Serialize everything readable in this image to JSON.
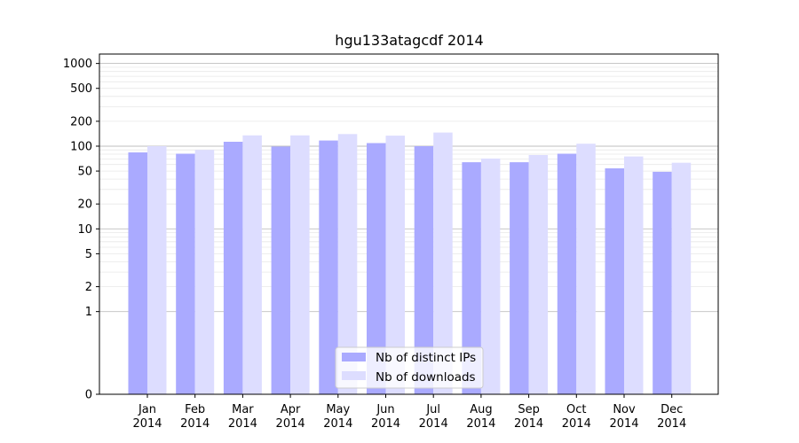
{
  "chart_data": {
    "type": "bar",
    "title": "hgu133atagcdf 2014",
    "xlabel": "",
    "ylabel": "",
    "scale": "symlog",
    "ylim": [
      0,
      1300
    ],
    "yticks": [
      0,
      1,
      2,
      5,
      10,
      20,
      50,
      100,
      200,
      500,
      1000
    ],
    "ytick_labels": [
      "0",
      "1",
      "2",
      "5",
      "10",
      "20",
      "50",
      "100",
      "200",
      "500",
      "1000"
    ],
    "grid": true,
    "legend_position": "bottom-center",
    "categories": [
      {
        "month": "Jan",
        "year": "2014"
      },
      {
        "month": "Feb",
        "year": "2014"
      },
      {
        "month": "Mar",
        "year": "2014"
      },
      {
        "month": "Apr",
        "year": "2014"
      },
      {
        "month": "May",
        "year": "2014"
      },
      {
        "month": "Jun",
        "year": "2014"
      },
      {
        "month": "Jul",
        "year": "2014"
      },
      {
        "month": "Aug",
        "year": "2014"
      },
      {
        "month": "Sep",
        "year": "2014"
      },
      {
        "month": "Oct",
        "year": "2014"
      },
      {
        "month": "Nov",
        "year": "2014"
      },
      {
        "month": "Dec",
        "year": "2014"
      }
    ],
    "series": [
      {
        "name": "Nb of distinct IPs",
        "color": "#aaaaff",
        "values": [
          84,
          81,
          113,
          99,
          117,
          109,
          100,
          64,
          64,
          81,
          54,
          49
        ]
      },
      {
        "name": "Nb of downloads",
        "color": "#ddddff",
        "values": [
          100,
          90,
          135,
          135,
          140,
          134,
          146,
          71,
          78,
          107,
          75,
          63
        ]
      }
    ]
  }
}
